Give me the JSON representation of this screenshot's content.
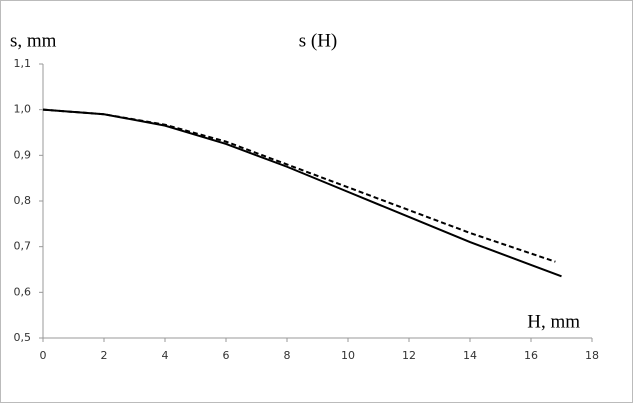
{
  "chart_data": {
    "type": "line",
    "title": "s (H)",
    "y_label": "s, mm",
    "x_label": "H, mm",
    "xlim": [
      0,
      18
    ],
    "xticks": [
      0,
      2,
      4,
      6,
      8,
      10,
      12,
      14,
      16,
      18
    ],
    "ylim": [
      0.5,
      1.1
    ],
    "yticks": [
      {
        "value": 0.5,
        "label": "0,5"
      },
      {
        "value": 0.6,
        "label": "0,6"
      },
      {
        "value": 0.7,
        "label": "0,7"
      },
      {
        "value": 0.8,
        "label": "0,8"
      },
      {
        "value": 0.9,
        "label": "0,9"
      },
      {
        "value": 1.0,
        "label": "1,0"
      },
      {
        "value": 1.1,
        "label": "1,1"
      }
    ],
    "grid": false,
    "series": [
      {
        "color": "#000000",
        "dash": false,
        "x": [
          0,
          2,
          4,
          6,
          8,
          10,
          12,
          14,
          16,
          17
        ],
        "values": [
          1.0,
          0.99,
          0.965,
          0.925,
          0.875,
          0.82,
          0.765,
          0.71,
          0.66,
          0.635
        ]
      },
      {
        "color": "#000000",
        "dash": true,
        "x": [
          0,
          2,
          4,
          6,
          8,
          10,
          12,
          14,
          16,
          16.8
        ],
        "values": [
          1.0,
          0.99,
          0.967,
          0.93,
          0.88,
          0.83,
          0.78,
          0.73,
          0.685,
          0.667
        ]
      }
    ]
  }
}
